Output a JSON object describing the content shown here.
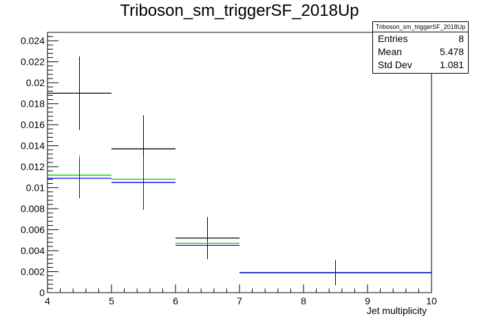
{
  "title": "Triboson_sm_triggerSF_2018Up",
  "stats": {
    "name": "Triboson_sm_triggerSF_2018Up",
    "rows": [
      {
        "label": "Entries",
        "value": "8"
      },
      {
        "label": "Mean",
        "value": "5.478"
      },
      {
        "label": "Std Dev",
        "value": "1.081"
      }
    ]
  },
  "chart_data": {
    "type": "histogram",
    "title": "Triboson_sm_triggerSF_2018Up",
    "xlabel": "Jet multiplicity",
    "ylabel": "",
    "xlim": [
      4,
      10
    ],
    "ylim": [
      0,
      0.0248
    ],
    "x_ticks": [
      4,
      5,
      6,
      7,
      8,
      9,
      10
    ],
    "y_ticks": [
      0,
      0.002,
      0.004,
      0.006,
      0.008,
      0.01,
      0.012,
      0.014,
      0.016,
      0.018,
      0.02,
      0.022,
      0.024
    ],
    "y_tick_labels": [
      "0",
      "0.002",
      "0.004",
      "0.006",
      "0.008",
      "0.01",
      "0.012",
      "0.014",
      "0.016",
      "0.018",
      "0.02",
      "0.022",
      "0.024"
    ],
    "series": [
      {
        "color": "#000000",
        "bins": [
          {
            "x_low": 4,
            "x_high": 5,
            "y": 0.019,
            "err": 0.0035
          },
          {
            "x_low": 5,
            "x_high": 6,
            "y": 0.0137,
            "err": 0.0032
          },
          {
            "x_low": 6,
            "x_high": 7,
            "y": 0.0052,
            "err": 0.002
          },
          {
            "x_low": 7,
            "x_high": 10,
            "y": 0.0019,
            "err": 0.0012
          }
        ]
      },
      {
        "color": "#00cc00",
        "bins": [
          {
            "x_low": 4,
            "x_high": 5,
            "y": 0.0112,
            "err": 0.0019
          },
          {
            "x_low": 5,
            "x_high": 6,
            "y": 0.0108,
            "err": 0.0
          },
          {
            "x_low": 6,
            "x_high": 7,
            "y": 0.0047,
            "err": 0.0
          },
          {
            "x_low": 7,
            "x_high": 10,
            "y": 0.0019,
            "err": 0.0
          }
        ]
      },
      {
        "color": "#0000ff",
        "bins": [
          {
            "x_low": 4,
            "x_high": 5,
            "y": 0.0109,
            "err": 0.0019
          },
          {
            "x_low": 5,
            "x_high": 6,
            "y": 0.0105,
            "err": 0.0026
          },
          {
            "x_low": 6,
            "x_high": 7,
            "y": 0.0045,
            "err": 0.0
          },
          {
            "x_low": 7,
            "x_high": 10,
            "y": 0.0019,
            "err": 0.0
          }
        ]
      }
    ]
  }
}
